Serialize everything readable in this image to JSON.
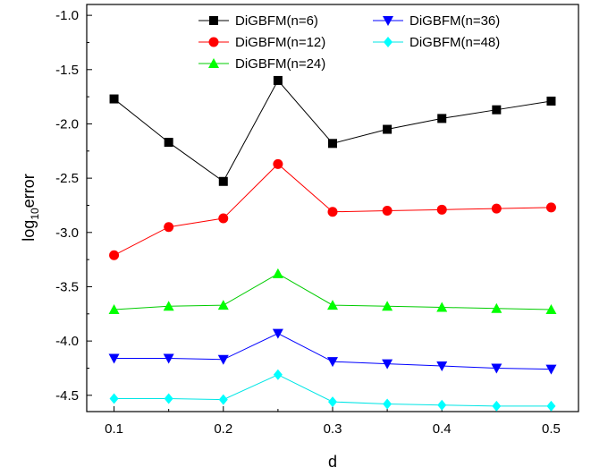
{
  "chart_data": {
    "type": "line",
    "title": "",
    "xlabel": "d",
    "ylabel": {
      "base": "log",
      "subscript": "10",
      "rest": "error"
    },
    "xlim": [
      0.075,
      0.525
    ],
    "ylim": [
      -4.65,
      -0.9
    ],
    "x_ticks": [
      0.1,
      0.2,
      0.3,
      0.4,
      0.5
    ],
    "x_tick_labels": [
      "0.1",
      "0.2",
      "0.3",
      "0.4",
      "0.5"
    ],
    "y_ticks": [
      -1.0,
      -1.5,
      -2.0,
      -2.5,
      -3.0,
      -3.5,
      -4.0,
      -4.5
    ],
    "y_tick_labels": [
      "-1.0",
      "-1.5",
      "-2.0",
      "-2.5",
      "-3.0",
      "-3.5",
      "-4.0",
      "-4.5"
    ],
    "grid": false,
    "legend_position": "top-right",
    "x": [
      0.1,
      0.15,
      0.2,
      0.25,
      0.3,
      0.35,
      0.4,
      0.45,
      0.5
    ],
    "series": [
      {
        "name": "DiGBFM(n=6)",
        "marker": "square",
        "line_color": "#000000",
        "marker_color": "#000000",
        "values": [
          -1.77,
          -2.17,
          -2.53,
          -1.6,
          -2.18,
          -2.05,
          -1.95,
          -1.87,
          -1.79
        ]
      },
      {
        "name": "DiGBFM(n=12)",
        "marker": "circle",
        "line_color": "#ff0000",
        "marker_color": "#ff0000",
        "values": [
          -3.21,
          -2.95,
          -2.87,
          -2.37,
          -2.81,
          -2.8,
          -2.79,
          -2.78,
          -2.77
        ]
      },
      {
        "name": "DiGBFM(n=24)",
        "marker": "triangle-up",
        "line_color": "#00cc00",
        "marker_color": "#00ff00",
        "values": [
          -3.71,
          -3.68,
          -3.67,
          -3.38,
          -3.67,
          -3.68,
          -3.69,
          -3.7,
          -3.71
        ]
      },
      {
        "name": "DiGBFM(n=36)",
        "marker": "triangle-down",
        "line_color": "#0000ff",
        "marker_color": "#0000ff",
        "values": [
          -4.16,
          -4.16,
          -4.17,
          -3.93,
          -4.19,
          -4.21,
          -4.23,
          -4.25,
          -4.26
        ]
      },
      {
        "name": "DiGBFM(n=48)",
        "marker": "diamond",
        "line_color": "#00e5e5",
        "marker_color": "#00ffff",
        "values": [
          -4.53,
          -4.53,
          -4.54,
          -4.31,
          -4.56,
          -4.58,
          -4.59,
          -4.6,
          -4.6
        ]
      }
    ]
  }
}
